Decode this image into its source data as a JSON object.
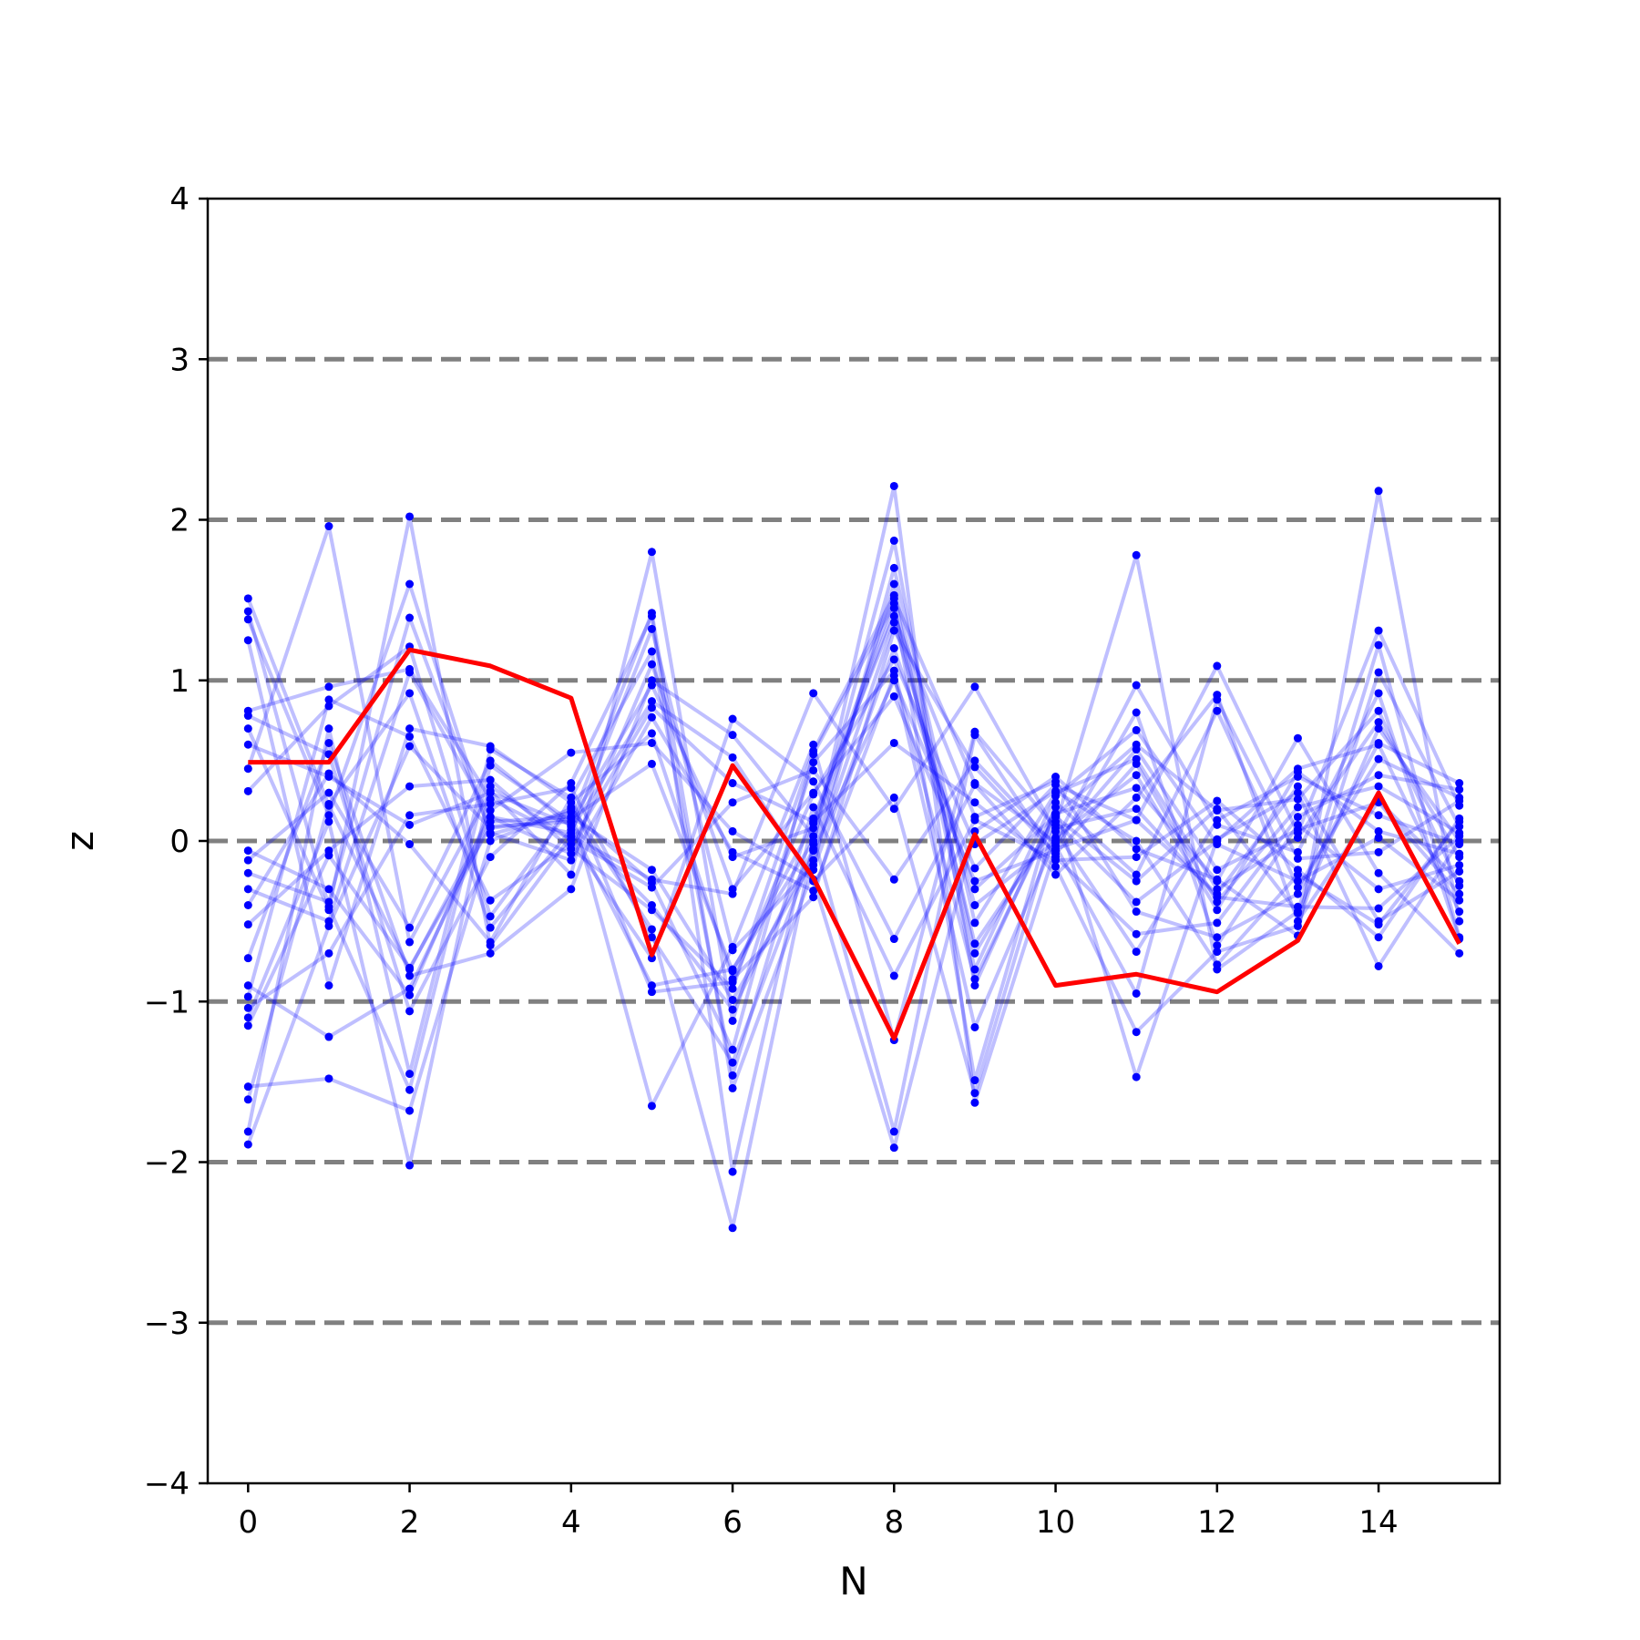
{
  "chart_data": {
    "type": "line",
    "xlabel": "N",
    "ylabel": "z",
    "xlim": [
      -0.5,
      15.5
    ],
    "ylim": [
      -4,
      4
    ],
    "xticks": [
      0,
      2,
      4,
      6,
      8,
      10,
      12,
      14
    ],
    "xtick_labels": [
      "0",
      "2",
      "4",
      "6",
      "8",
      "10",
      "12",
      "14"
    ],
    "yticks": [
      -4,
      -3,
      -2,
      -1,
      0,
      1,
      2,
      3,
      4
    ],
    "ytick_labels": [
      "−4",
      "−3",
      "−2",
      "−1",
      "0",
      "1",
      "2",
      "3",
      "4"
    ],
    "reference_lines_y": [
      -3,
      -2,
      -1,
      0,
      1,
      2,
      3
    ],
    "grid": false,
    "x": [
      0,
      1,
      2,
      3,
      4,
      5,
      6,
      7,
      8,
      9,
      10,
      11,
      12,
      13,
      14,
      15
    ],
    "colors": {
      "ensemble": "#0000ff",
      "highlight": "#ff0000",
      "reference": "#808080"
    },
    "series": [
      {
        "values": [
          1.51,
          0.22,
          -0.8,
          0.15,
          0.05,
          1.32,
          -0.68,
          -0.15,
          1.7,
          -0.51,
          0.3,
          0.51,
          -0.3,
          0.02,
          0.74,
          -0.1
        ]
      },
      {
        "values": [
          1.43,
          -0.41,
          -1.55,
          0.47,
          0.12,
          0.97,
          -0.1,
          0.08,
          1.45,
          -0.64,
          0.1,
          1.78,
          -0.8,
          -0.44,
          1.22,
          -0.6
        ]
      },
      {
        "values": [
          1.38,
          0.16,
          1.6,
          0.04,
          0.18,
          -0.26,
          -1.3,
          0.54,
          1.48,
          -1.49,
          0.24,
          -0.21,
          0.81,
          -0.29,
          0.51,
          0.27
        ]
      },
      {
        "values": [
          1.25,
          -0.9,
          0.7,
          0.59,
          0.24,
          0.67,
          -0.86,
          -0.35,
          1.31,
          0.46,
          -0.08,
          0.48,
          -0.38,
          0.21,
          0.34,
          0.05
        ]
      },
      {
        "values": [
          0.81,
          0.96,
          1.07,
          0.26,
          0.01,
          -0.73,
          0.76,
          0.37,
          -0.61,
          0.35,
          -0.21,
          0.27,
          0.91,
          -0.5,
          0.25,
          -0.25
        ]
      },
      {
        "values": [
          0.78,
          0.54,
          -1.06,
          -0.1,
          0.36,
          1.4,
          -2.06,
          0.14,
          1.4,
          0.15,
          0.37,
          -0.44,
          -0.6,
          -0.33,
          0.61,
          0.36
        ]
      },
      {
        "values": [
          0.7,
          -0.43,
          2.02,
          -0.65,
          0.03,
          -0.24,
          -0.33,
          0.92,
          0.2,
          0.96,
          0.06,
          -0.69,
          0.13,
          0.4,
          0.16,
          -0.02
        ]
      },
      {
        "values": [
          0.45,
          1.96,
          -0.63,
          0.31,
          -0.21,
          1.8,
          -1.12,
          0.49,
          1.06,
          -0.86,
          0.17,
          0.33,
          -0.25,
          0.64,
          -0.2,
          -0.7
        ]
      },
      {
        "values": [
          0.31,
          0.84,
          1.21,
          -0.47,
          0.21,
          -0.55,
          -2.41,
          -0.02,
          2.21,
          -1.63,
          -0.05,
          0.13,
          1.09,
          0.05,
          1.31,
          0.22
        ]
      },
      {
        "values": [
          -0.06,
          -0.3,
          -0.96,
          0.19,
          0.55,
          0.61,
          0.06,
          -0.24,
          -1.91,
          0.06,
          0.4,
          -0.05,
          -0.24,
          -0.59,
          2.18,
          -0.5
        ]
      },
      {
        "values": [
          -0.12,
          0.3,
          -0.54,
          0.5,
          0.09,
          -0.9,
          -0.8,
          0.0,
          1.87,
          -0.9,
          0.21,
          -1.47,
          0.01,
          0.3,
          -0.78,
          0.0
        ]
      },
      {
        "values": [
          -0.2,
          -0.38,
          1.39,
          0.05,
          -0.12,
          0.77,
          -0.07,
          -0.31,
          1.03,
          -1.16,
          0.02,
          0.41,
          -0.43,
          0.43,
          0.06,
          -0.08
        ]
      },
      {
        "values": [
          -0.4,
          0.42,
          -0.02,
          -0.63,
          0.27,
          1.18,
          -1.46,
          0.21,
          -0.84,
          0.13,
          -0.12,
          -0.1,
          0.25,
          -0.18,
          -0.6,
          0.14
        ]
      },
      {
        "values": [
          -0.52,
          -0.06,
          0.34,
          0.38,
          -0.05,
          -0.43,
          -0.92,
          0.56,
          1.53,
          -0.8,
          0.28,
          0.69,
          -0.02,
          -0.25,
          0.02,
          -0.37
        ]
      },
      {
        "values": [
          -0.73,
          0.61,
          -0.84,
          -0.7,
          -0.3,
          1.0,
          0.66,
          0.03,
          -1.81,
          0.66,
          -0.1,
          -0.58,
          -0.51,
          0.15,
          0.41,
          0.32
        ]
      },
      {
        "values": [
          -0.9,
          -1.22,
          -0.92,
          0.12,
          0.15,
          -0.18,
          -0.99,
          -0.12,
          1.36,
          -0.4,
          0.0,
          0.97,
          0.1,
          -0.07,
          0.92,
          -0.61
        ]
      },
      {
        "values": [
          -0.97,
          0.88,
          0.65,
          -0.37,
          -0.02,
          0.83,
          0.36,
          0.12,
          0.61,
          0.24,
          -0.16,
          -1.19,
          -0.69,
          -0.53,
          1.05,
          0.09
        ]
      },
      {
        "values": [
          -1.04,
          -0.7,
          0.16,
          0.23,
          0.33,
          -0.6,
          -1.38,
          -0.06,
          1.0,
          -0.17,
          0.35,
          0.13,
          -0.33,
          0.34,
          -0.5,
          -0.19
        ]
      },
      {
        "values": [
          -1.1,
          0.12,
          -2.02,
          0.34,
          0.01,
          -0.29,
          0.24,
          0.44,
          -0.24,
          0.5,
          -0.03,
          -0.95,
          0.88,
          -0.11,
          -0.07,
          0.25
        ]
      },
      {
        "values": [
          -1.15,
          -0.09,
          -0.79,
          0.09,
          0.12,
          1.42,
          -1.54,
          -0.18,
          1.2,
          -0.3,
          0.16,
          0.6,
          0.19,
          0.26,
          0.81,
          -0.28
        ]
      },
      {
        "values": [
          -1.53,
          -1.48,
          -1.68,
          0.0,
          0.2,
          -1.65,
          -0.66,
          0.6,
          -1.24,
          0.68,
          0.08,
          0.2,
          -0.35,
          -0.41,
          -0.42,
          0.03
        ]
      },
      {
        "values": [
          -1.61,
          0.23,
          0.92,
          -0.54,
          0.07,
          0.87,
          0.52,
          -0.25,
          0.27,
          -1.57,
          0.12,
          -0.38,
          0.0,
          0.45,
          0.6,
          -0.44
        ]
      },
      {
        "values": [
          -1.81,
          0.7,
          -1.45,
          0.57,
          0.27,
          -0.94,
          -0.88,
          0.29,
          1.13,
          -0.02,
          0.31,
          0.0,
          -0.77,
          -0.21,
          -0.52,
          0.12
        ]
      },
      {
        "values": [
          -1.89,
          -0.53,
          0.59,
          0.08,
          0.14,
          0.48,
          -0.81,
          0.11,
          1.51,
          0.36,
          -0.01,
          0.57,
          -0.18,
          0.07,
          0.24,
          -0.33
        ]
      },
      {
        "values": [
          0.6,
          0.4,
          0.1,
          0.3,
          0.1,
          -0.4,
          -1.05,
          -0.05,
          1.6,
          -0.7,
          0.15,
          -0.25,
          0.2,
          -0.45,
          0.7,
          0.0
        ]
      },
      {
        "values": [
          -0.3,
          -0.5,
          1.05,
          0.15,
          -0.08,
          1.1,
          -0.3,
          0.3,
          0.9,
          -0.25,
          -0.06,
          0.8,
          -0.65,
          0.1,
          -0.3,
          -0.15
        ]
      }
    ],
    "highlight": {
      "values": [
        0.49,
        0.49,
        1.19,
        1.09,
        0.89,
        -0.71,
        0.47,
        -0.23,
        -1.23,
        0.04,
        -0.9,
        -0.83,
        -0.94,
        -0.62,
        0.3,
        -0.64
      ]
    }
  }
}
